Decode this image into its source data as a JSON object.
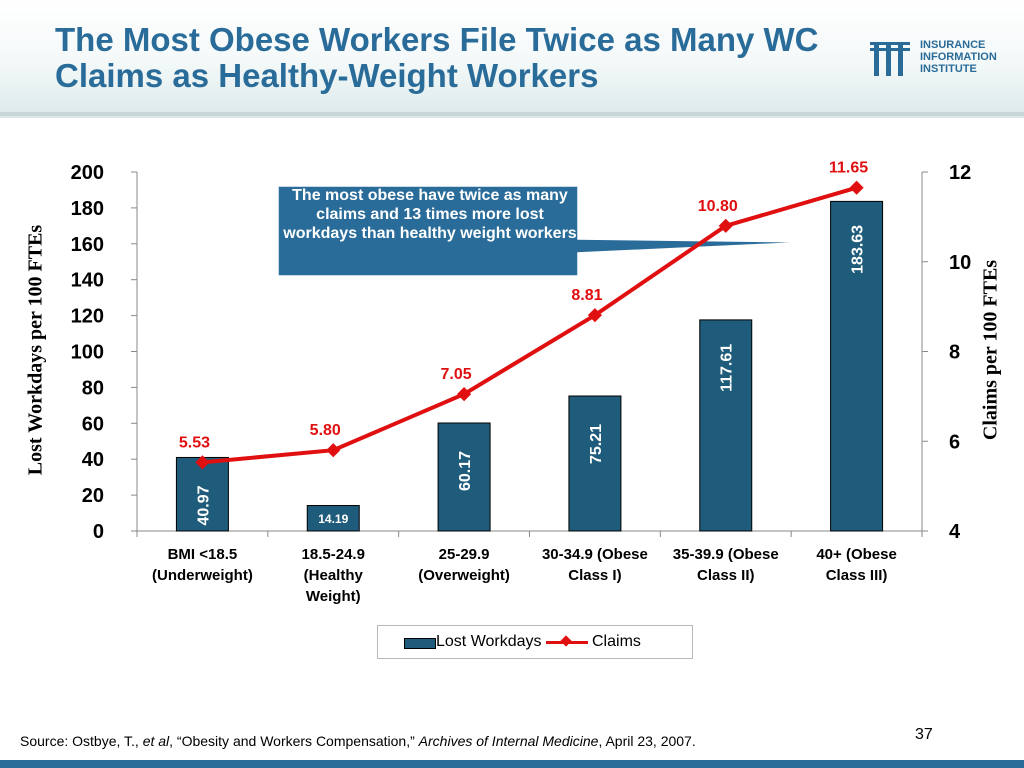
{
  "slide": {
    "title": "The Most Obese Workers File Twice as Many WC Claims as Healthy-Weight Workers",
    "logo_lines": [
      "INSURANCE",
      "INFORMATION",
      "INSTITUTE"
    ],
    "callout": "The most obese have twice as many claims and 13 times more lost workdays than healthy weight workers",
    "source_prefix": "Source: Ostbye, T., ",
    "source_etal": "et al",
    "source_mid": ", “Obesity and Workers Compensation,” ",
    "source_journal": "Archives of Internal Medicine",
    "source_suffix": ", April 23, 2007.",
    "page_number": "37"
  },
  "colors": {
    "title": "#2a6c99",
    "bar": "#1f5b7a",
    "line": "#e01010",
    "accent": "#2a6c99"
  },
  "chart_data": {
    "type": "bar",
    "categories": [
      [
        "BMI <18.5",
        "(Underweight)"
      ],
      [
        "18.5-24.9",
        "(Healthy",
        "Weight)"
      ],
      [
        "25-29.9",
        "(Overweight)"
      ],
      [
        "30-34.9 (Obese",
        "Class I)"
      ],
      [
        "35-39.9 (Obese",
        "Class II)"
      ],
      [
        "40+ (Obese",
        "Class III)"
      ]
    ],
    "series": [
      {
        "name": "Lost Workdays",
        "type": "bar",
        "axis": "left",
        "values": [
          40.97,
          14.19,
          60.17,
          75.21,
          117.61,
          183.63
        ],
        "labels": [
          "40.97",
          "14.19",
          "60.17",
          "75.21",
          "117.61",
          "183.63"
        ]
      },
      {
        "name": "Claims",
        "type": "line",
        "axis": "right",
        "values": [
          5.53,
          5.8,
          7.05,
          8.81,
          10.8,
          11.65
        ],
        "labels": [
          "5.53",
          "5.80",
          "7.05",
          "8.81",
          "10.80",
          "11.65"
        ]
      }
    ],
    "ylabel": "Lost Workdays per 100 FTEs",
    "y2label": "Claims per 100 FTEs",
    "ylim": [
      0,
      200
    ],
    "y2lim": [
      4,
      12
    ],
    "yticks": [
      0,
      20,
      40,
      60,
      80,
      100,
      120,
      140,
      160,
      180,
      200
    ],
    "y2ticks": [
      4,
      6,
      8,
      10,
      12
    ],
    "legend": "bottom",
    "grid": false
  }
}
